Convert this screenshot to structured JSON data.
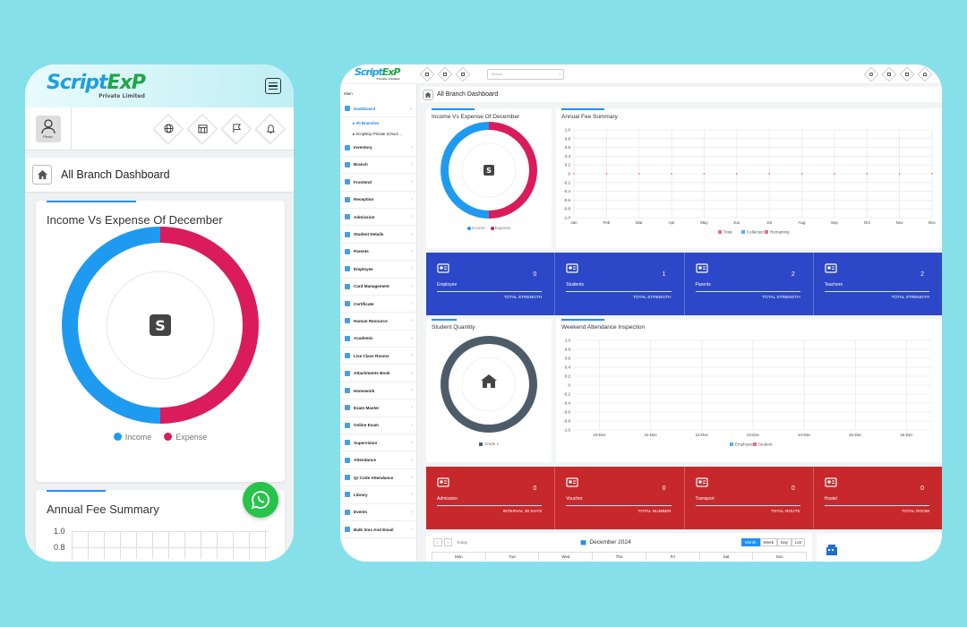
{
  "brand": {
    "logo_main": "Script",
    "logo_accent": "ExP",
    "logo_sub": "Private Limited"
  },
  "colors": {
    "income": "#1e9bf0",
    "expense": "#da1b5c",
    "blue_band": "#2c47c7",
    "red_band": "#c7282b",
    "accent": "#1e90ff"
  },
  "phone": {
    "avatar_caption": "Photo",
    "header_icons": [
      "globe-icon",
      "calendar-icon",
      "flag-icon",
      "bell-icon"
    ],
    "page_title": "All Branch Dashboard",
    "income_card": {
      "title": "Income Vs Expense Of December",
      "legend": [
        "Income",
        "Expense"
      ]
    },
    "fee_card": {
      "title": "Annual Fee Summary",
      "ticks": [
        "1.0",
        "0.8"
      ]
    }
  },
  "desktop": {
    "search_placeholder": "Search",
    "sidebar_heading": "Main",
    "sidebar_items": [
      {
        "label": "Dashboard",
        "active": true
      },
      {
        "label": "Inventory"
      },
      {
        "label": "Branch"
      },
      {
        "label": "Frontend"
      },
      {
        "label": "Reception"
      },
      {
        "label": "Admission"
      },
      {
        "label": "Student Details"
      },
      {
        "label": "Parents"
      },
      {
        "label": "Employee"
      },
      {
        "label": "Card Management"
      },
      {
        "label": "Certificate"
      },
      {
        "label": "Human Resource"
      },
      {
        "label": "Academic"
      },
      {
        "label": "Live Class Rooms"
      },
      {
        "label": "Attachments Book"
      },
      {
        "label": "Homework"
      },
      {
        "label": "Exam Master"
      },
      {
        "label": "Online Exam"
      },
      {
        "label": "Supervision"
      },
      {
        "label": "Attendance"
      },
      {
        "label": "Qr Code Attendance"
      },
      {
        "label": "Library"
      },
      {
        "label": "Events"
      },
      {
        "label": "Bulk Sms And Email"
      }
    ],
    "sidebar_subitems": [
      "All Branches",
      "ScriptExp Private School ..."
    ],
    "breadcrumb": "All Branch Dashboard",
    "income_panel": {
      "title": "Income Vs Expense Of December",
      "legend": [
        "Income",
        "Expense"
      ]
    },
    "fee_panel": {
      "title": "Annual Fee Summary",
      "yticks": [
        "1.0",
        "0.8",
        "0.6",
        "0.4",
        "0.2",
        "0",
        "-0.2",
        "-0.4",
        "-0.6",
        "-0.8",
        "-1.0"
      ],
      "months": [
        "Jan",
        "Feb",
        "Mar",
        "Apr",
        "May",
        "Jun",
        "Jul",
        "Aug",
        "Sep",
        "Oct",
        "Nov",
        "Dec"
      ],
      "legend": [
        "Total",
        "Collected",
        "Remaining"
      ],
      "legend_colors": [
        "#e5727d",
        "#5ab0e6",
        "#e5727d"
      ]
    },
    "blue_stats": [
      {
        "label": "Employee",
        "value": "0",
        "footer": "TOTAL STRENGTH",
        "icon": "users-icon"
      },
      {
        "label": "Students",
        "value": "1",
        "footer": "TOTAL STRENGTH",
        "icon": "graduation-cap-icon"
      },
      {
        "label": "Parents",
        "value": "2",
        "footer": "TOTAL STRENGTH",
        "icon": "user-icon"
      },
      {
        "label": "Teachers",
        "value": "2",
        "footer": "TOTAL STRENGTH",
        "icon": "teacher-icon"
      }
    ],
    "student_panel": {
      "title": "Student Quantity",
      "legend": [
        "Grade 1"
      ]
    },
    "attendance_panel": {
      "title": "Weekend Attendance Inspection",
      "yticks": [
        "1.0",
        "0.8",
        "0.6",
        "0.4",
        "0.2",
        "0",
        "-0.2",
        "-0.4",
        "-0.6",
        "-0.8",
        "-1.0"
      ],
      "xticks": [
        "10-Dec",
        "11-Dec",
        "12-Dec",
        "13-Dec",
        "14-Dec",
        "15-Dec",
        "16-Dec"
      ],
      "legend": [
        "Employee",
        "Student"
      ]
    },
    "red_stats": [
      {
        "label": "Admission",
        "value": "0",
        "footer": "INTERVAL 30 DAYS",
        "icon": "id-card-icon"
      },
      {
        "label": "Voucher",
        "value": "0",
        "footer": "TOTAL NUMBER",
        "icon": "money-icon"
      },
      {
        "label": "Transport",
        "value": "0",
        "footer": "TOTAL ROUTE",
        "icon": "road-icon"
      },
      {
        "label": "Hostel",
        "value": "0",
        "footer": "TOTAL ROOM",
        "icon": "building-icon"
      }
    ],
    "calendar": {
      "today_label": "Today",
      "month_title": "December 2024",
      "views": [
        "Month",
        "Week",
        "Day",
        "List"
      ],
      "active_view": "Month",
      "weekdays": [
        "Mon",
        "Tue",
        "Wed",
        "Thu",
        "Fri",
        "Sat",
        "Sun"
      ]
    }
  }
}
